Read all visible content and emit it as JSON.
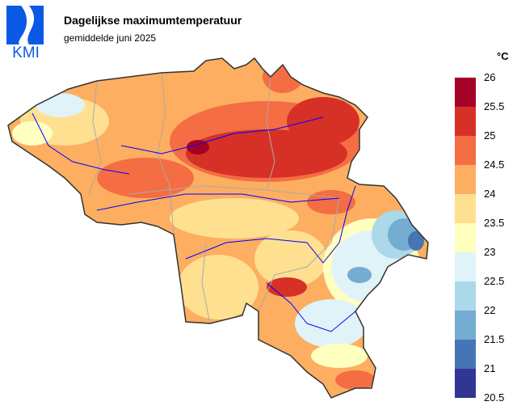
{
  "logo_text": "KMI",
  "title": "Dagelijkse maximumtemperatuur",
  "subtitle": "gemiddelde juni 2025",
  "legend": {
    "unit": "°C",
    "ticks": [
      "26",
      "25.5",
      "25",
      "24.5",
      "24",
      "23.5",
      "23",
      "22.5",
      "22",
      "21.5",
      "21",
      "20.5"
    ],
    "colors": [
      "#a50026",
      "#d73027",
      "#f46d43",
      "#fdae61",
      "#fee090",
      "#ffffbf",
      "#e0f3f8",
      "#abd9e9",
      "#74add1",
      "#4575b4",
      "#313695"
    ]
  },
  "colors": {
    "border": "#333333",
    "rivers": "#0000ff",
    "provinces": "#aaaaaa",
    "brand": "#0a5ae6"
  }
}
